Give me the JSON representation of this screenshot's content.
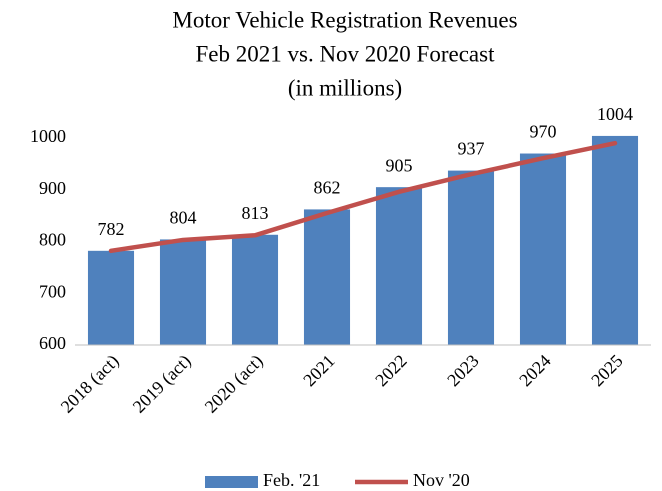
{
  "chart_data": {
    "type": "bar",
    "title": [
      "Motor Vehicle Registration Revenues",
      "Feb 2021 vs. Nov 2020 Forecast",
      "(in millions)"
    ],
    "categories": [
      "2018 (act)",
      "2019 (act)",
      "2020 (act)",
      "2021",
      "2022",
      "2023",
      "2024",
      "2025"
    ],
    "series": [
      {
        "name": "Feb. '21",
        "type": "bar",
        "color": "#4f81bd",
        "values": [
          782,
          804,
          813,
          862,
          905,
          937,
          970,
          1004
        ]
      },
      {
        "name": "Nov '20",
        "type": "line",
        "color": "#c0504d",
        "values": [
          782,
          803,
          812,
          855,
          896,
          930,
          961,
          990
        ]
      }
    ],
    "ylim": [
      600,
      1000
    ],
    "yticks": [
      600,
      700,
      800,
      900,
      1000
    ],
    "grid": false,
    "legend": "bottom"
  }
}
